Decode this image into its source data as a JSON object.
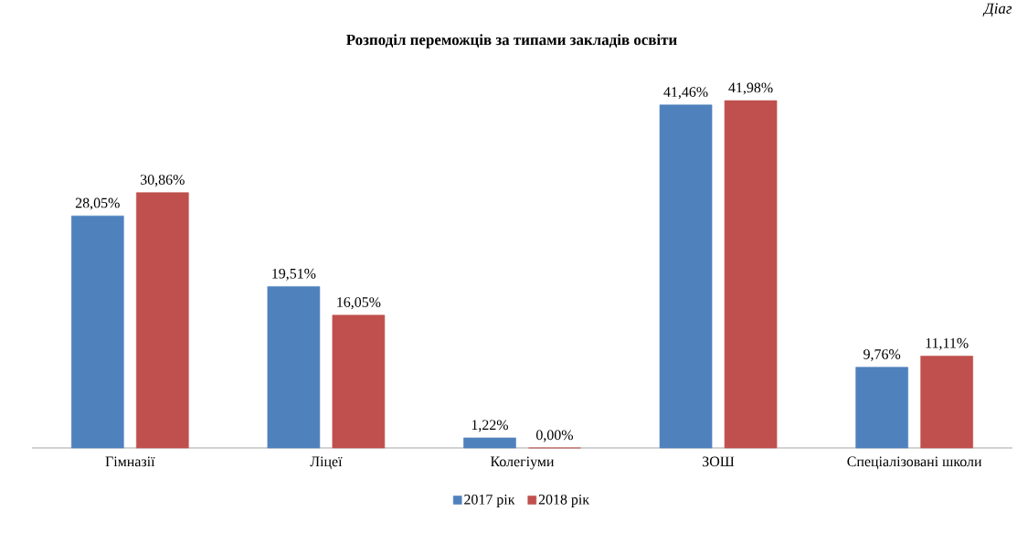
{
  "chart_data": {
    "type": "bar",
    "title": "Розподіл переможців за типами закладів освіти",
    "categories": [
      "Гімназії",
      "Ліцеї",
      "Колегіуми",
      "ЗОШ",
      "Спеціалізовані школи"
    ],
    "series": [
      {
        "name": "2017 рік",
        "color": "#4f81bd",
        "values": [
          28.05,
          19.51,
          1.22,
          41.46,
          9.76
        ],
        "value_labels": [
          "28,05%",
          "19,51%",
          "1,22%",
          "41,46%",
          "9,76%"
        ]
      },
      {
        "name": "2018 рік",
        "color": "#c0504d",
        "values": [
          30.86,
          16.05,
          0.0,
          41.98,
          11.11
        ],
        "value_labels": [
          "30,86%",
          "16,05%",
          "0,00%",
          "41,98%",
          "11,11%"
        ]
      }
    ],
    "legend": "bottom",
    "annotations": [
      "Діаг"
    ]
  }
}
